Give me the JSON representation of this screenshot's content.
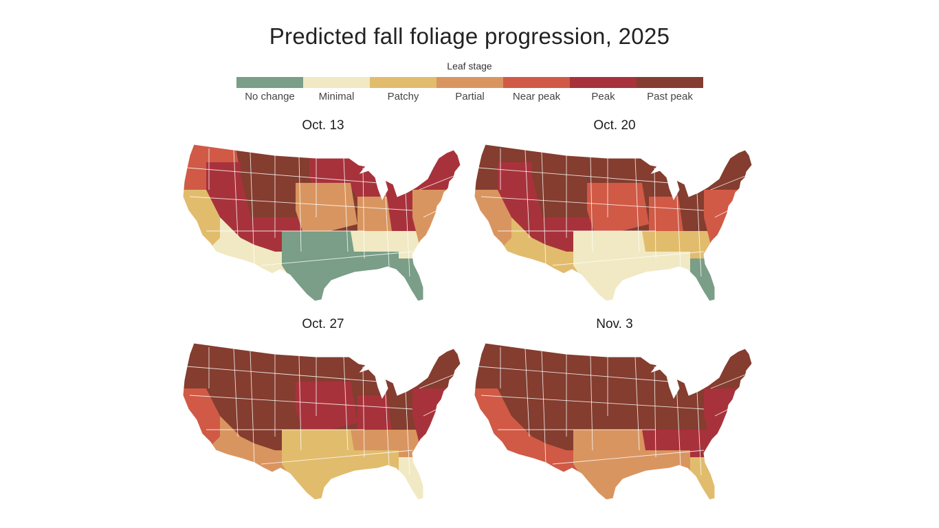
{
  "title": "Predicted fall foliage progression, 2025",
  "legend": {
    "title": "Leaf stage",
    "items": [
      {
        "label": "No change",
        "color": "#7a9e87"
      },
      {
        "label": "Minimal",
        "color": "#f1e9c3"
      },
      {
        "label": "Patchy",
        "color": "#e1bc6d"
      },
      {
        "label": "Partial",
        "color": "#d99560"
      },
      {
        "label": "Near peak",
        "color": "#d05a46"
      },
      {
        "label": "Peak",
        "color": "#a8323b"
      },
      {
        "label": "Past peak",
        "color": "#843d2f"
      }
    ]
  },
  "panels": [
    {
      "date": "Oct. 13"
    },
    {
      "date": "Oct. 20"
    },
    {
      "date": "Oct. 27"
    },
    {
      "date": "Nov. 3"
    }
  ]
}
